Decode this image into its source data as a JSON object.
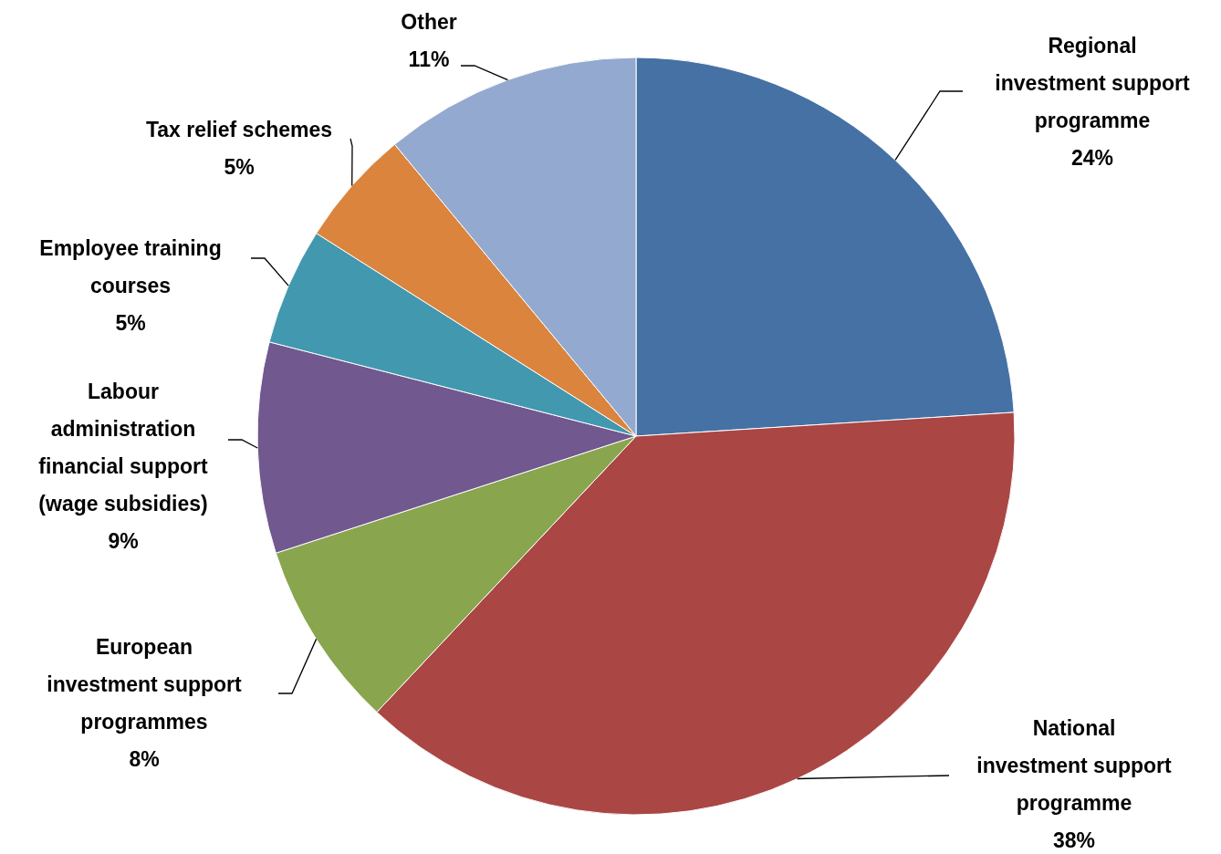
{
  "chart_data": {
    "type": "pie",
    "categories": [
      "Regional investment support programme",
      "National investment support programme",
      "European investment support programmes",
      "Labour administration financial support (wage subsidies)",
      "Employee training courses",
      "Tax relief schemes",
      "Other"
    ],
    "values": [
      24,
      38,
      8,
      9,
      5,
      5,
      11
    ],
    "colors": [
      "#4571a5",
      "#aa4644",
      "#89a54e",
      "#71588f",
      "#4198af",
      "#db843d",
      "#93a9cf"
    ],
    "value_labels": [
      "24%",
      "38%",
      "8%",
      "9%",
      "5%",
      "5%",
      "11%"
    ]
  }
}
